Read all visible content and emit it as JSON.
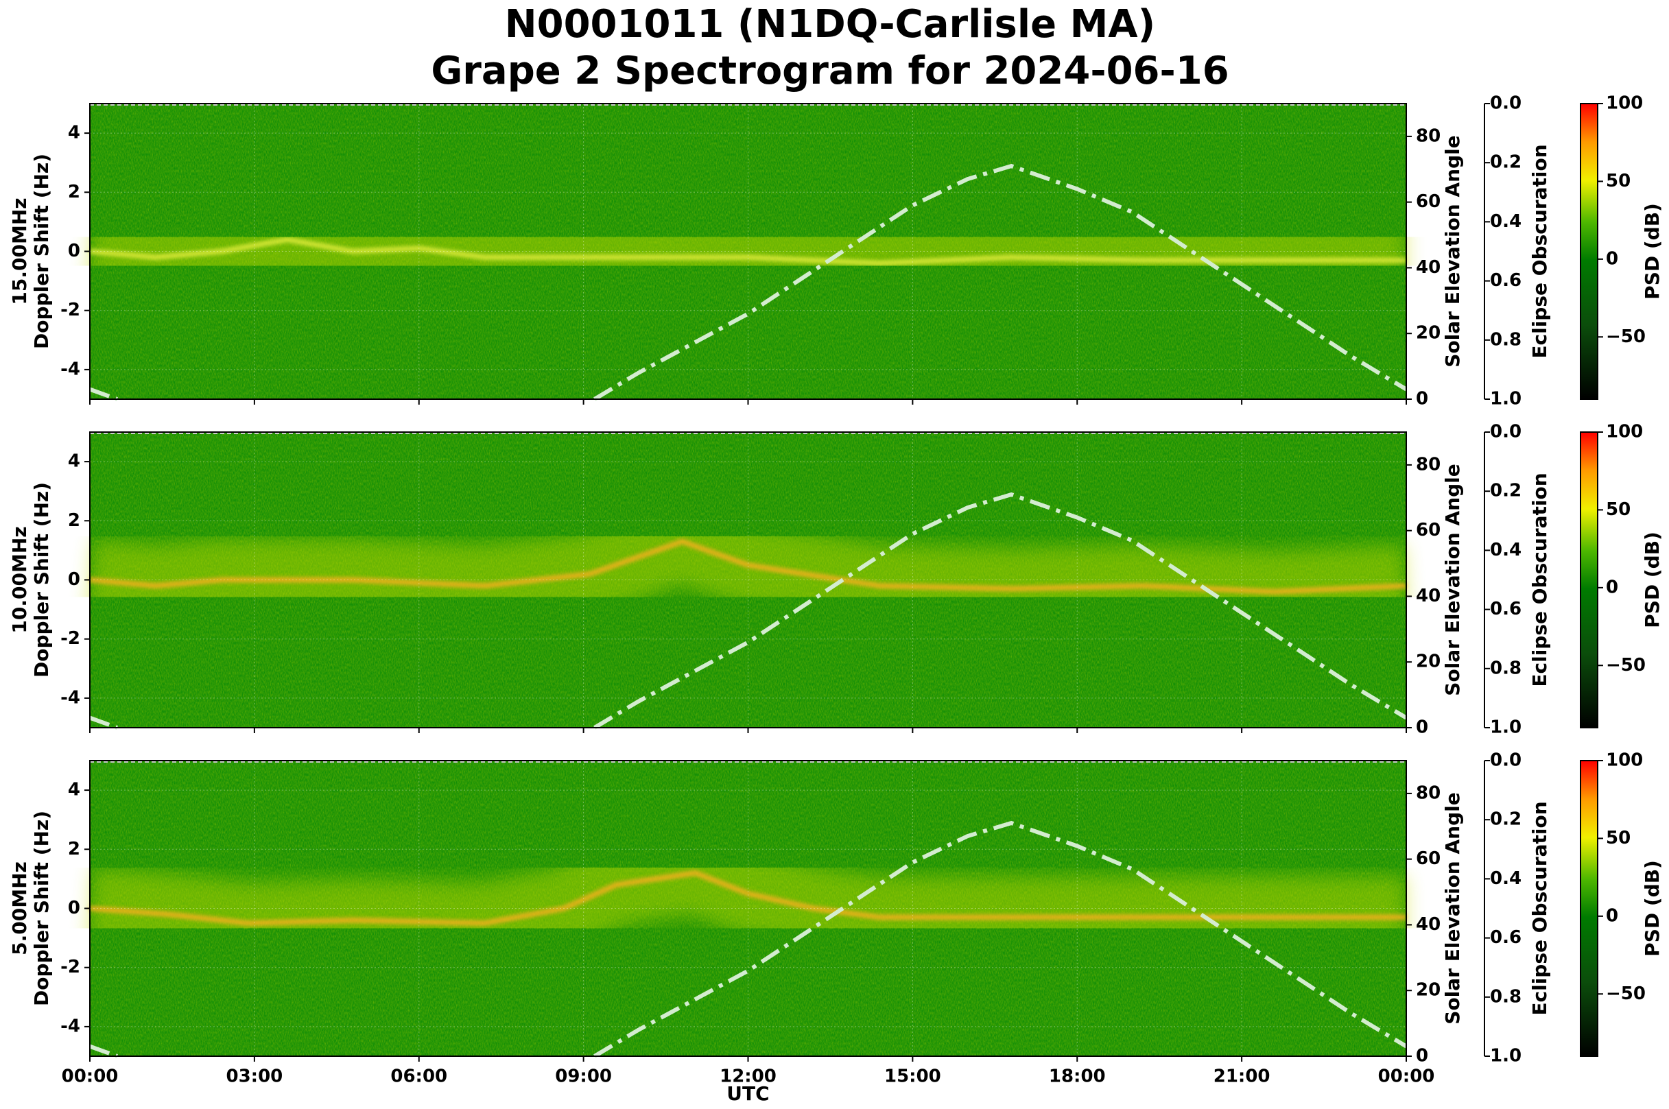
{
  "chart_data": {
    "type": "spectrogram",
    "title": [
      "N0001011 (N1DQ-Carlisle MA)",
      "Grape 2 Spectrogram for 2024-06-16"
    ],
    "xlabel": "UTC",
    "xlim": [
      0,
      24
    ],
    "xticks": [
      {
        "value": 0,
        "label": "00:00"
      },
      {
        "value": 3,
        "label": "03:00"
      },
      {
        "value": 6,
        "label": "06:00"
      },
      {
        "value": 9,
        "label": "09:00"
      },
      {
        "value": 12,
        "label": "12:00"
      },
      {
        "value": 15,
        "label": "15:00"
      },
      {
        "value": 18,
        "label": "18:00"
      },
      {
        "value": 21,
        "label": "21:00"
      },
      {
        "value": 24,
        "label": "00:00"
      }
    ],
    "grid": true,
    "panels": [
      {
        "ylabel": [
          "15.00MHz",
          "Doppler Shift (Hz)"
        ]
      },
      {
        "ylabel": [
          "10.00MHz",
          "Doppler Shift (Hz)"
        ]
      },
      {
        "ylabel": [
          "5.00MHz",
          "Doppler Shift (Hz)"
        ]
      }
    ],
    "ylim": [
      -5,
      5
    ],
    "yticks": [
      -4,
      -2,
      0,
      2,
      4
    ],
    "y2label": "Solar Elevation Angle",
    "y2lim": [
      0,
      90
    ],
    "y2ticks": [
      0,
      20,
      40,
      60,
      80
    ],
    "y3label": "Eclipse Obscuration",
    "y3lim": [
      1,
      0
    ],
    "y3ticks": [
      {
        "value": 0,
        "label": "0.0"
      },
      {
        "value": 0.2,
        "label": "0.2"
      },
      {
        "value": 0.4,
        "label": "0.4"
      },
      {
        "value": 0.6,
        "label": "0.6"
      },
      {
        "value": 0.8,
        "label": "0.8"
      },
      {
        "value": 1,
        "label": "1.0"
      }
    ],
    "colorbar_label": "PSD (dB)",
    "clim": [
      -90,
      100
    ],
    "cticks": [
      {
        "value": -50,
        "label": "−50"
      },
      0,
      50,
      100
    ],
    "solar": {
      "color": "#d4ecd0",
      "axis": "y2",
      "x": [
        0,
        0.5,
        null,
        9.2,
        10,
        11,
        12,
        13,
        14,
        15,
        16,
        16.8,
        18,
        19,
        20,
        21,
        22,
        23,
        24
      ],
      "values": [
        3,
        0,
        null,
        0,
        8,
        17,
        26,
        37,
        48,
        59,
        67,
        71,
        64,
        57,
        46,
        35,
        24,
        13,
        3
      ]
    }
  }
}
